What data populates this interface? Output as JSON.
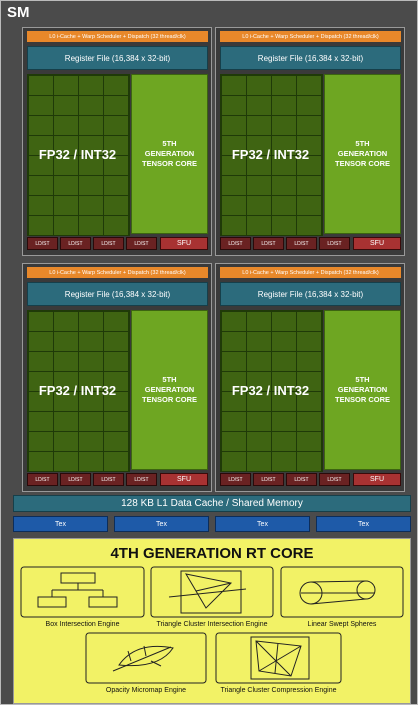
{
  "title": "SM",
  "partitions": [
    {
      "scheduler": "L0 i-Cache + Warp Scheduler + Dispatch (32 thread/clk)",
      "register_file": "Register File (16,384 x 32-bit)",
      "cores": "FP32 / INT32",
      "tensor_core": [
        "5TH",
        "GENERATION",
        "TENSOR CORE"
      ],
      "load_store": [
        "LD/ST",
        "LD/ST",
        "LD/ST",
        "LD/ST"
      ],
      "sfu": "SFU"
    },
    {
      "scheduler": "L0 i-Cache + Warp Scheduler + Dispatch (32 thread/clk)",
      "register_file": "Register File (16,384 x 32-bit)",
      "cores": "FP32 / INT32",
      "tensor_core": [
        "5TH",
        "GENERATION",
        "TENSOR CORE"
      ],
      "load_store": [
        "LD/ST",
        "LD/ST",
        "LD/ST",
        "LD/ST"
      ],
      "sfu": "SFU"
    },
    {
      "scheduler": "L0 i-Cache + Warp Scheduler + Dispatch (32 thread/clk)",
      "register_file": "Register File (16,384 x 32-bit)",
      "cores": "FP32 / INT32",
      "tensor_core": [
        "5TH",
        "GENERATION",
        "TENSOR CORE"
      ],
      "load_store": [
        "LD/ST",
        "LD/ST",
        "LD/ST",
        "LD/ST"
      ],
      "sfu": "SFU"
    },
    {
      "scheduler": "L0 i-Cache + Warp Scheduler + Dispatch (32 thread/clk)",
      "register_file": "Register File (16,384 x 32-bit)",
      "cores": "FP32 / INT32",
      "tensor_core": [
        "5TH",
        "GENERATION",
        "TENSOR CORE"
      ],
      "load_store": [
        "LD/ST",
        "LD/ST",
        "LD/ST",
        "LD/ST"
      ],
      "sfu": "SFU"
    }
  ],
  "l1_cache": "128 KB L1 Data Cache / Shared Memory",
  "tex_units": [
    "Tex",
    "Tex",
    "Tex",
    "Tex"
  ],
  "rt_core": {
    "title": "4TH GENERATION RT CORE",
    "engines": [
      "Box Intersection Engine",
      "Triangle Cluster Intersection Engine",
      "Linear Swept Spheres",
      "Opacity Micromap Engine",
      "Triangle Cluster Compression Engine"
    ]
  }
}
